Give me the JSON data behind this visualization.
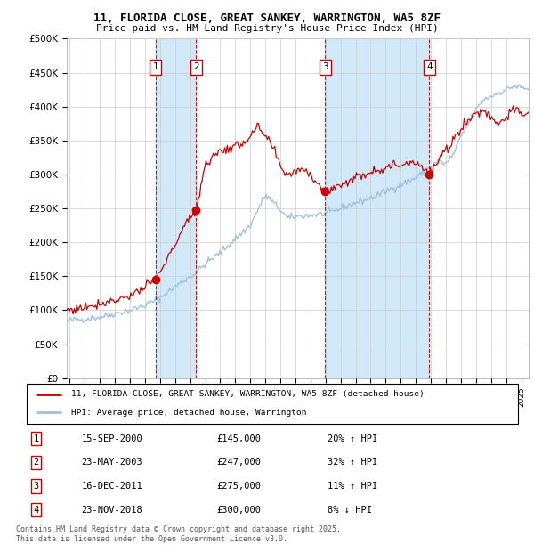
{
  "title_line1": "11, FLORIDA CLOSE, GREAT SANKEY, WARRINGTON, WA5 8ZF",
  "title_line2": "Price paid vs. HM Land Registry's House Price Index (HPI)",
  "ylim": [
    0,
    500000
  ],
  "yticks": [
    0,
    50000,
    100000,
    150000,
    200000,
    250000,
    300000,
    350000,
    400000,
    450000,
    500000
  ],
  "ytick_labels": [
    "£0",
    "£50K",
    "£100K",
    "£150K",
    "£200K",
    "£250K",
    "£300K",
    "£350K",
    "£400K",
    "£450K",
    "£500K"
  ],
  "xlim_start": 1994.8,
  "xlim_end": 2025.5,
  "sale_dates": [
    2000.71,
    2003.39,
    2011.96,
    2018.9
  ],
  "sale_prices": [
    145000,
    247000,
    275000,
    300000
  ],
  "sale_labels": [
    "1",
    "2",
    "3",
    "4"
  ],
  "legend_entries": [
    "11, FLORIDA CLOSE, GREAT SANKEY, WARRINGTON, WA5 8ZF (detached house)",
    "HPI: Average price, detached house, Warrington"
  ],
  "table_rows": [
    [
      "1",
      "15-SEP-2000",
      "£145,000",
      "20% ↑ HPI"
    ],
    [
      "2",
      "23-MAY-2003",
      "£247,000",
      "32% ↑ HPI"
    ],
    [
      "3",
      "16-DEC-2011",
      "£275,000",
      "11% ↑ HPI"
    ],
    [
      "4",
      "23-NOV-2018",
      "£300,000",
      "8% ↓ HPI"
    ]
  ],
  "footer_text": "Contains HM Land Registry data © Crown copyright and database right 2025.\nThis data is licensed under the Open Government Licence v3.0.",
  "hpi_color": "#a0c0e0",
  "price_color": "#cc0000",
  "shade_color": "#d0e8f8",
  "grid_color": "#cccccc",
  "sale_box_color": "#cc0000",
  "hpi_anchors_dates": [
    1994.8,
    1996.0,
    1997.0,
    1998.0,
    1999.0,
    2000.0,
    2001.0,
    2002.0,
    2003.39,
    2004.0,
    2005.0,
    2006.0,
    2007.0,
    2008.0,
    2009.0,
    2009.5,
    2010.0,
    2011.0,
    2011.96,
    2012.5,
    2013.0,
    2014.0,
    2015.0,
    2016.0,
    2017.0,
    2018.0,
    2018.9,
    2019.5,
    2020.0,
    2020.5,
    2021.0,
    2021.5,
    2022.0,
    2022.5,
    2023.0,
    2023.5,
    2024.0,
    2024.5,
    2025.0,
    2025.5
  ],
  "hpi_anchors_vals": [
    85000,
    87000,
    90000,
    95000,
    100000,
    107000,
    118000,
    135000,
    155000,
    168000,
    185000,
    205000,
    225000,
    270000,
    248000,
    235000,
    238000,
    240000,
    242000,
    245000,
    250000,
    258000,
    265000,
    275000,
    285000,
    295000,
    310000,
    320000,
    315000,
    330000,
    355000,
    375000,
    395000,
    410000,
    415000,
    420000,
    425000,
    430000,
    428000,
    425000
  ],
  "prop_anchors_dates": [
    1994.8,
    1995.5,
    1996.0,
    1997.0,
    1998.0,
    1999.0,
    2000.0,
    2000.71,
    2001.5,
    2002.5,
    2003.39,
    2004.0,
    2005.0,
    2006.0,
    2007.0,
    2007.5,
    2008.0,
    2008.5,
    2009.0,
    2009.5,
    2010.0,
    2010.5,
    2011.0,
    2011.96,
    2012.5,
    2013.0,
    2014.0,
    2015.0,
    2016.0,
    2017.0,
    2018.0,
    2018.9,
    2019.5,
    2020.0,
    2020.5,
    2021.0,
    2021.5,
    2022.0,
    2022.5,
    2023.0,
    2023.5,
    2024.0,
    2024.5,
    2025.0,
    2025.5
  ],
  "prop_anchors_vals": [
    100000,
    102000,
    105000,
    110000,
    115000,
    122000,
    133000,
    145000,
    175000,
    220000,
    247000,
    315000,
    335000,
    340000,
    355000,
    370000,
    355000,
    340000,
    310000,
    300000,
    305000,
    310000,
    300000,
    275000,
    280000,
    285000,
    295000,
    305000,
    310000,
    315000,
    320000,
    300000,
    320000,
    335000,
    350000,
    370000,
    380000,
    390000,
    395000,
    385000,
    375000,
    385000,
    395000,
    390000,
    388000
  ]
}
